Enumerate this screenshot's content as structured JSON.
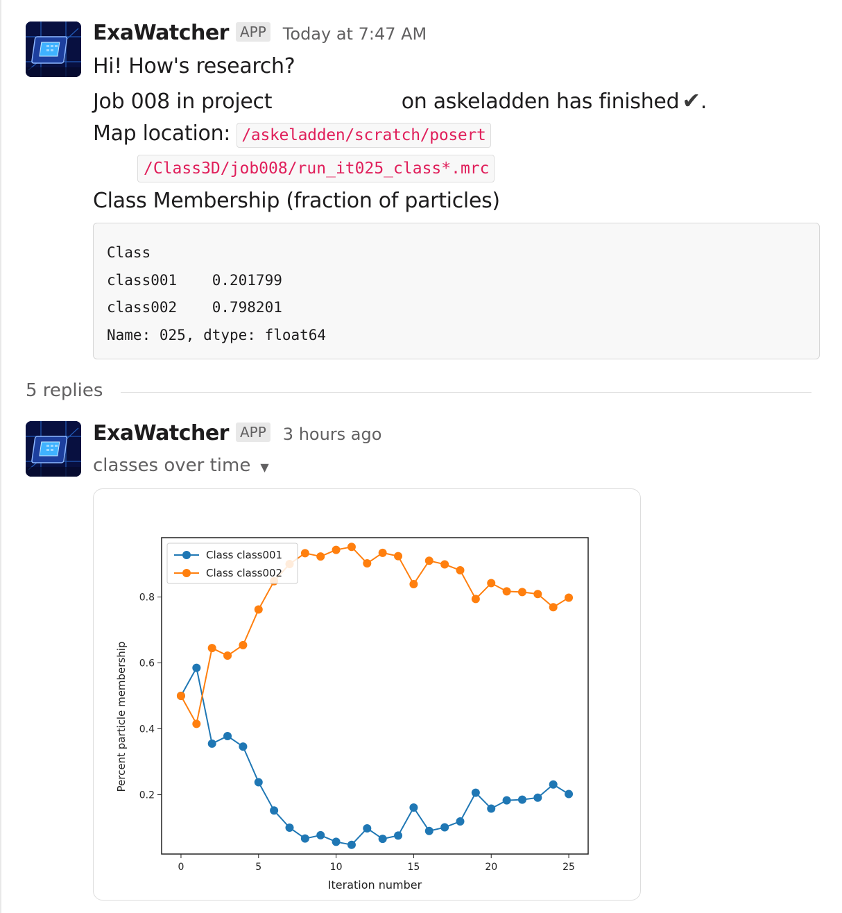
{
  "messages": [
    {
      "sender": "ExaWatcher",
      "badge": "APP",
      "timestamp": "Today at 7:47 AM",
      "greeting": "Hi! How's research?",
      "job_text_before": "Job 008 in project",
      "job_text_after": "on askeladden has finished",
      "job_status_icon": "heavy-check-mark-icon",
      "map_label": "Map location:",
      "map_path_line1": "/askeladden/scratch/posert",
      "map_path_line2": "/Class3D/job008/run_it025_class*.mrc",
      "membership_heading": "Class Membership (fraction of particles)",
      "code_lines": [
        "Class",
        "class001    0.201799",
        "class002    0.798201",
        "Name: 025, dtype: float64"
      ]
    }
  ],
  "thread": {
    "replies_label": "5 replies"
  },
  "reply": {
    "sender": "ExaWatcher",
    "badge": "APP",
    "timestamp": "3 hours ago",
    "file_title": "classes over time",
    "file_menu_icon": "caret-down-icon"
  },
  "colors": {
    "class001": "#1f77b4",
    "class002": "#ff7f0e",
    "inline_code": "#e01e5a",
    "muted_text": "#616061"
  },
  "chart_data": {
    "type": "line",
    "title": "",
    "xlabel": "Iteration number",
    "ylabel": "Percent particle membership",
    "x": [
      0,
      1,
      2,
      3,
      4,
      5,
      6,
      7,
      8,
      9,
      10,
      11,
      12,
      13,
      14,
      15,
      16,
      17,
      18,
      19,
      20,
      21,
      22,
      23,
      24,
      25
    ],
    "xlim": [
      -1.25,
      26.25
    ],
    "ylim": [
      0.02,
      0.98
    ],
    "x_ticks": [
      0,
      5,
      10,
      15,
      20,
      25
    ],
    "y_ticks": [
      0.2,
      0.4,
      0.6,
      0.8
    ],
    "y_tick_labels": [
      "0.2",
      "0.4",
      "0.6",
      "0.8"
    ],
    "legend_position": "top-left",
    "grid": false,
    "series": [
      {
        "name": "Class class001",
        "values": [
          0.5,
          0.585,
          0.355,
          0.378,
          0.346,
          0.238,
          0.152,
          0.1,
          0.067,
          0.077,
          0.057,
          0.048,
          0.098,
          0.066,
          0.076,
          0.161,
          0.09,
          0.101,
          0.119,
          0.206,
          0.158,
          0.183,
          0.185,
          0.191,
          0.231,
          0.202
        ]
      },
      {
        "name": "Class class002",
        "values": [
          0.5,
          0.415,
          0.645,
          0.622,
          0.654,
          0.762,
          0.848,
          0.9,
          0.933,
          0.923,
          0.943,
          0.952,
          0.902,
          0.934,
          0.924,
          0.839,
          0.91,
          0.899,
          0.881,
          0.794,
          0.842,
          0.817,
          0.815,
          0.809,
          0.769,
          0.798
        ]
      }
    ]
  }
}
